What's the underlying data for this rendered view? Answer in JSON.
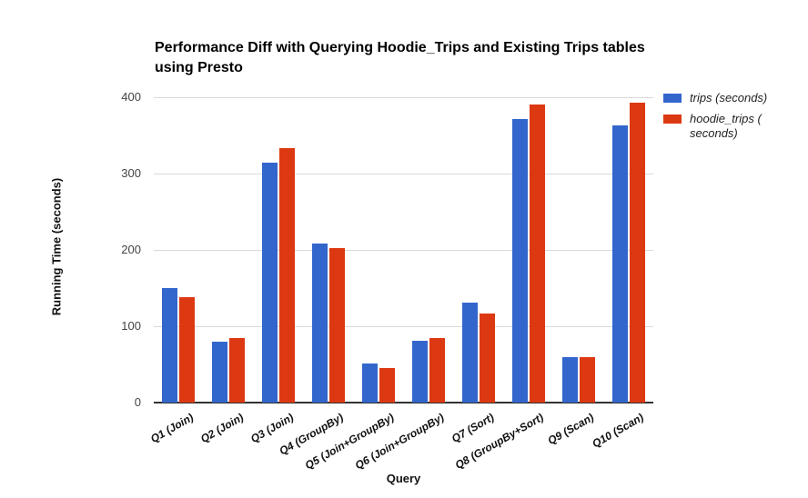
{
  "chart_data": {
    "type": "bar",
    "title": "Performance Diff with Querying Hoodie_Trips and Existing Trips tables using Presto",
    "title_lines": [
      "Performance Diff with Querying Hoodie_Trips and Existing Trips tables",
      "using Presto"
    ],
    "xlabel": "Query",
    "ylabel": "Running Time (seconds)",
    "categories": [
      "Q1 (Join)",
      "Q2 (Join)",
      "Q3 (Join)",
      "Q4 (GroupBy)",
      "Q5 (Join+GroupBy)",
      "Q6 (Join+GroupBy)",
      "Q7 (Sort)",
      "Q8 (GroupBy+Sort)",
      "Q9 (Scan)",
      "Q10 (Scan)"
    ],
    "series": [
      {
        "name": "trips (seconds)",
        "color": "#3366CC",
        "values": [
          150,
          80,
          314,
          208,
          51,
          81,
          131,
          371,
          60,
          363
        ]
      },
      {
        "name": "hoodie_trips ( seconds)",
        "color": "#DC3912",
        "values": [
          138,
          84,
          333,
          202,
          45,
          85,
          117,
          390,
          59,
          393
        ]
      }
    ],
    "ylim": [
      0,
      400
    ],
    "yticks": [
      0,
      100,
      200,
      300,
      400
    ],
    "grid": true,
    "legend_position": "right",
    "background_color": "#ffffff",
    "gridline_color": "#d9d9d9",
    "axisline_color": "#333333"
  }
}
